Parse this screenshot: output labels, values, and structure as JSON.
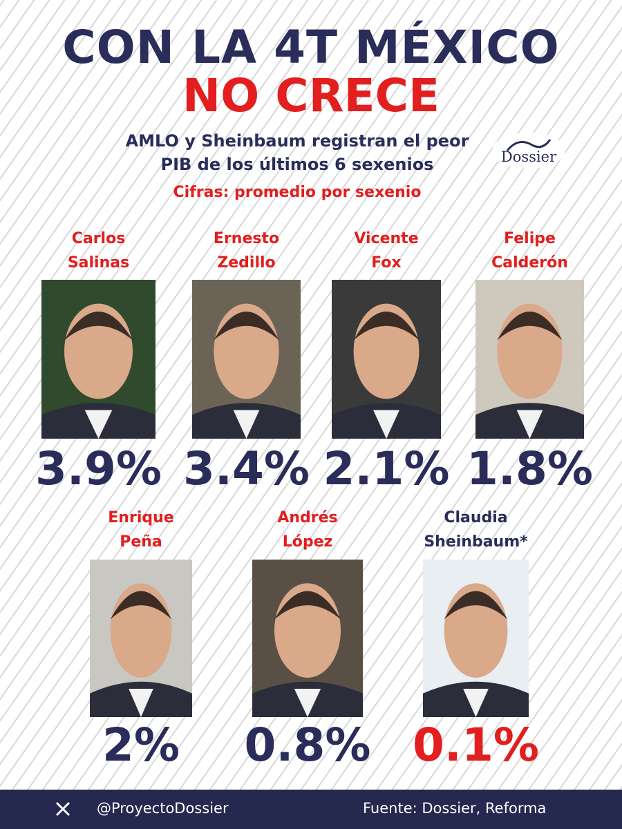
{
  "header": {
    "title_line1": "CON LA 4T MÉXICO",
    "title_line2": "NO CRECE",
    "subtitle_line1": "AMLO y Sheinbaum registran el peor",
    "subtitle_line2": "PIB de los últimos 6 sexenios",
    "note": "Cifras: promedio por sexenio",
    "logo": "Dossier"
  },
  "presidents": [
    {
      "first": "Carlos",
      "last": "Salinas",
      "growth": "3.9%"
    },
    {
      "first": "Ernesto",
      "last": "Zedillo",
      "growth": "3.4%"
    },
    {
      "first": "Vicente",
      "last": "Fox",
      "growth": "2.1%"
    },
    {
      "first": "Felipe",
      "last": "Calderón",
      "growth": "1.8%"
    },
    {
      "first": "Enrique",
      "last": "Peña",
      "growth": "2%"
    },
    {
      "first": "Andrés",
      "last": "López",
      "growth": "0.8%"
    },
    {
      "first": "Claudia",
      "last": "Sheinbaum*",
      "growth": "0.1%"
    }
  ],
  "footer": {
    "handle": "@ProyectoDossier",
    "source": "Fuente: Dossier, Reforma"
  }
}
